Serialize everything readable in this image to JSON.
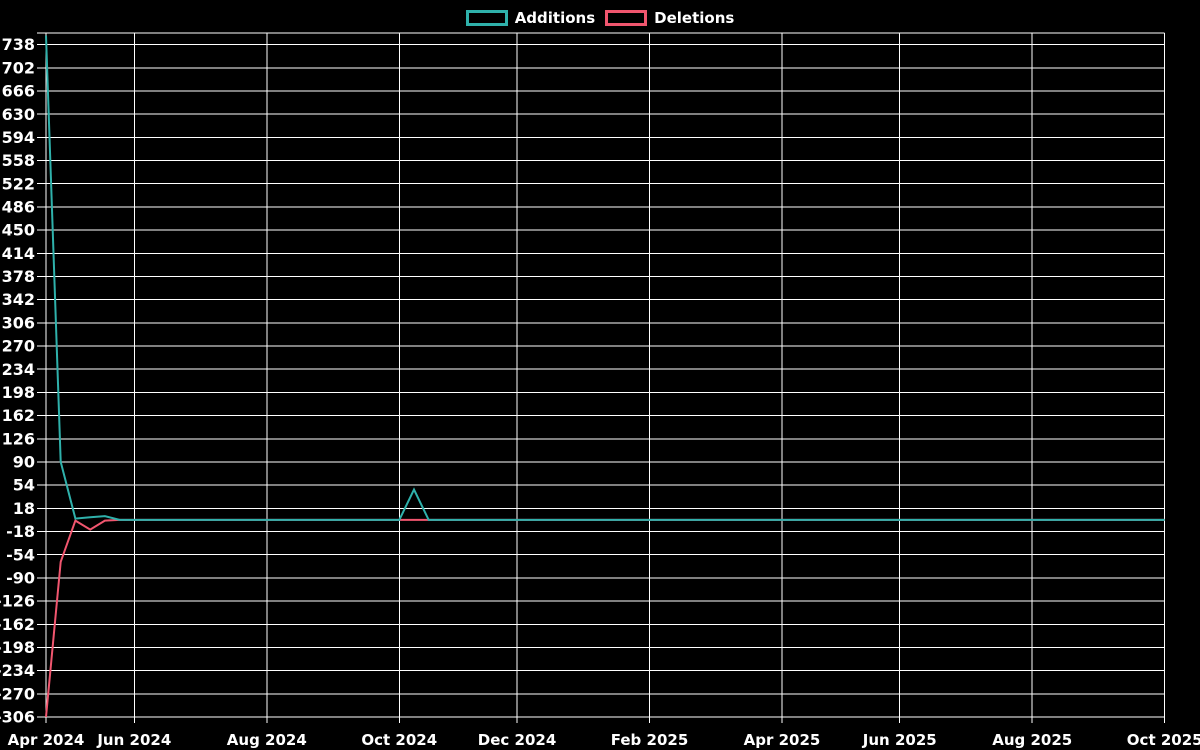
{
  "page": {
    "background": "#000000"
  },
  "legend": {
    "items": [
      {
        "label": "Additions",
        "color": "#2FB1AB"
      },
      {
        "label": "Deletions",
        "color": "#F1566F"
      }
    ]
  },
  "chart_data": {
    "type": "line",
    "title": "",
    "legend_position": "top-center",
    "grid": true,
    "colors": {
      "background": "#000000",
      "grid": "#FFFFFF",
      "text": "#FFFFFF",
      "additions_line": "#2FB1AB",
      "deletions_line": "#F1566F"
    },
    "x_axis": {
      "unit": "weeks",
      "tick_labels": [
        "Apr 2024",
        "Jun 2024",
        "Aug 2024",
        "Oct 2024",
        "Dec 2024",
        "Feb 2025",
        "Apr 2025",
        "Jun 2025",
        "Aug 2025",
        "Oct 2025"
      ],
      "tick_week_indices": [
        0,
        6,
        15,
        24,
        32,
        41,
        50,
        58,
        67,
        76
      ]
    },
    "y_axis": {
      "range": [
        -306,
        756
      ],
      "tick_step": 36,
      "tick_values": [
        738,
        702,
        666,
        630,
        594,
        558,
        522,
        486,
        450,
        414,
        378,
        342,
        306,
        270,
        234,
        198,
        162,
        126,
        90,
        54,
        18,
        -18,
        -54,
        -90,
        -126,
        -162,
        -198,
        -234,
        -270,
        -306
      ]
    },
    "weeks": 77,
    "series": [
      {
        "name": "Additions",
        "color": "#2FB1AB",
        "values": [
          752,
          90,
          2,
          4,
          6,
          0,
          0,
          0,
          0,
          0,
          0,
          0,
          0,
          0,
          0,
          0,
          0,
          0,
          0,
          0,
          0,
          0,
          0,
          0,
          0,
          47,
          0,
          0,
          0,
          0,
          0,
          0,
          0,
          0,
          0,
          0,
          0,
          0,
          0,
          0,
          0,
          0,
          0,
          0,
          0,
          0,
          0,
          0,
          0,
          0,
          0,
          0,
          0,
          0,
          0,
          0,
          0,
          0,
          0,
          0,
          0,
          0,
          0,
          0,
          0,
          0,
          0,
          0,
          0,
          0,
          0,
          0,
          0,
          0,
          0,
          0,
          0
        ]
      },
      {
        "name": "Deletions",
        "color": "#F1566F",
        "values": [
          -306,
          -65,
          -1,
          -15,
          -1,
          0,
          0,
          0,
          0,
          0,
          0,
          0,
          0,
          0,
          0,
          0,
          0,
          0,
          0,
          0,
          0,
          0,
          0,
          0,
          0,
          0,
          0,
          0,
          0,
          0,
          0,
          0,
          0,
          0,
          0,
          0,
          0,
          0,
          0,
          0,
          0,
          0,
          0,
          0,
          0,
          0,
          0,
          0,
          0,
          0,
          0,
          0,
          0,
          0,
          0,
          0,
          0,
          0,
          0,
          0,
          0,
          0,
          0,
          0,
          0,
          0,
          0,
          0,
          0,
          0,
          0,
          0,
          0,
          0,
          0,
          0,
          0
        ]
      }
    ]
  }
}
